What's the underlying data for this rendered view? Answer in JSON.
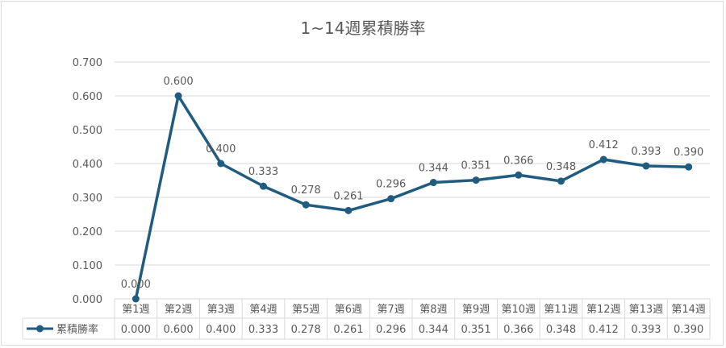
{
  "chart_data": {
    "type": "line",
    "title": "1~14週累積勝率",
    "categories": [
      "第1週",
      "第2週",
      "第3週",
      "第4週",
      "第5週",
      "第6週",
      "第7週",
      "第8週",
      "第9週",
      "第10週",
      "第11週",
      "第12週",
      "第13週",
      "第14週"
    ],
    "series": [
      {
        "name": "累積勝率",
        "values": [
          0.0,
          0.6,
          0.4,
          0.333,
          0.278,
          0.261,
          0.296,
          0.344,
          0.351,
          0.366,
          0.348,
          0.412,
          0.393,
          0.39
        ],
        "labels": [
          "0.000",
          "0.600",
          "0.400",
          "0.333",
          "0.278",
          "0.261",
          "0.296",
          "0.344",
          "0.351",
          "0.366",
          "0.348",
          "0.412",
          "0.393",
          "0.390"
        ]
      }
    ],
    "ylim": [
      0,
      0.7
    ],
    "yticks": [
      "0.000",
      "0.100",
      "0.200",
      "0.300",
      "0.400",
      "0.500",
      "0.600",
      "0.700"
    ],
    "grid": true,
    "legend": "data-table",
    "colors": {
      "line": "#1f5c80",
      "grid": "#d9d9d9",
      "text": "#595959"
    }
  }
}
